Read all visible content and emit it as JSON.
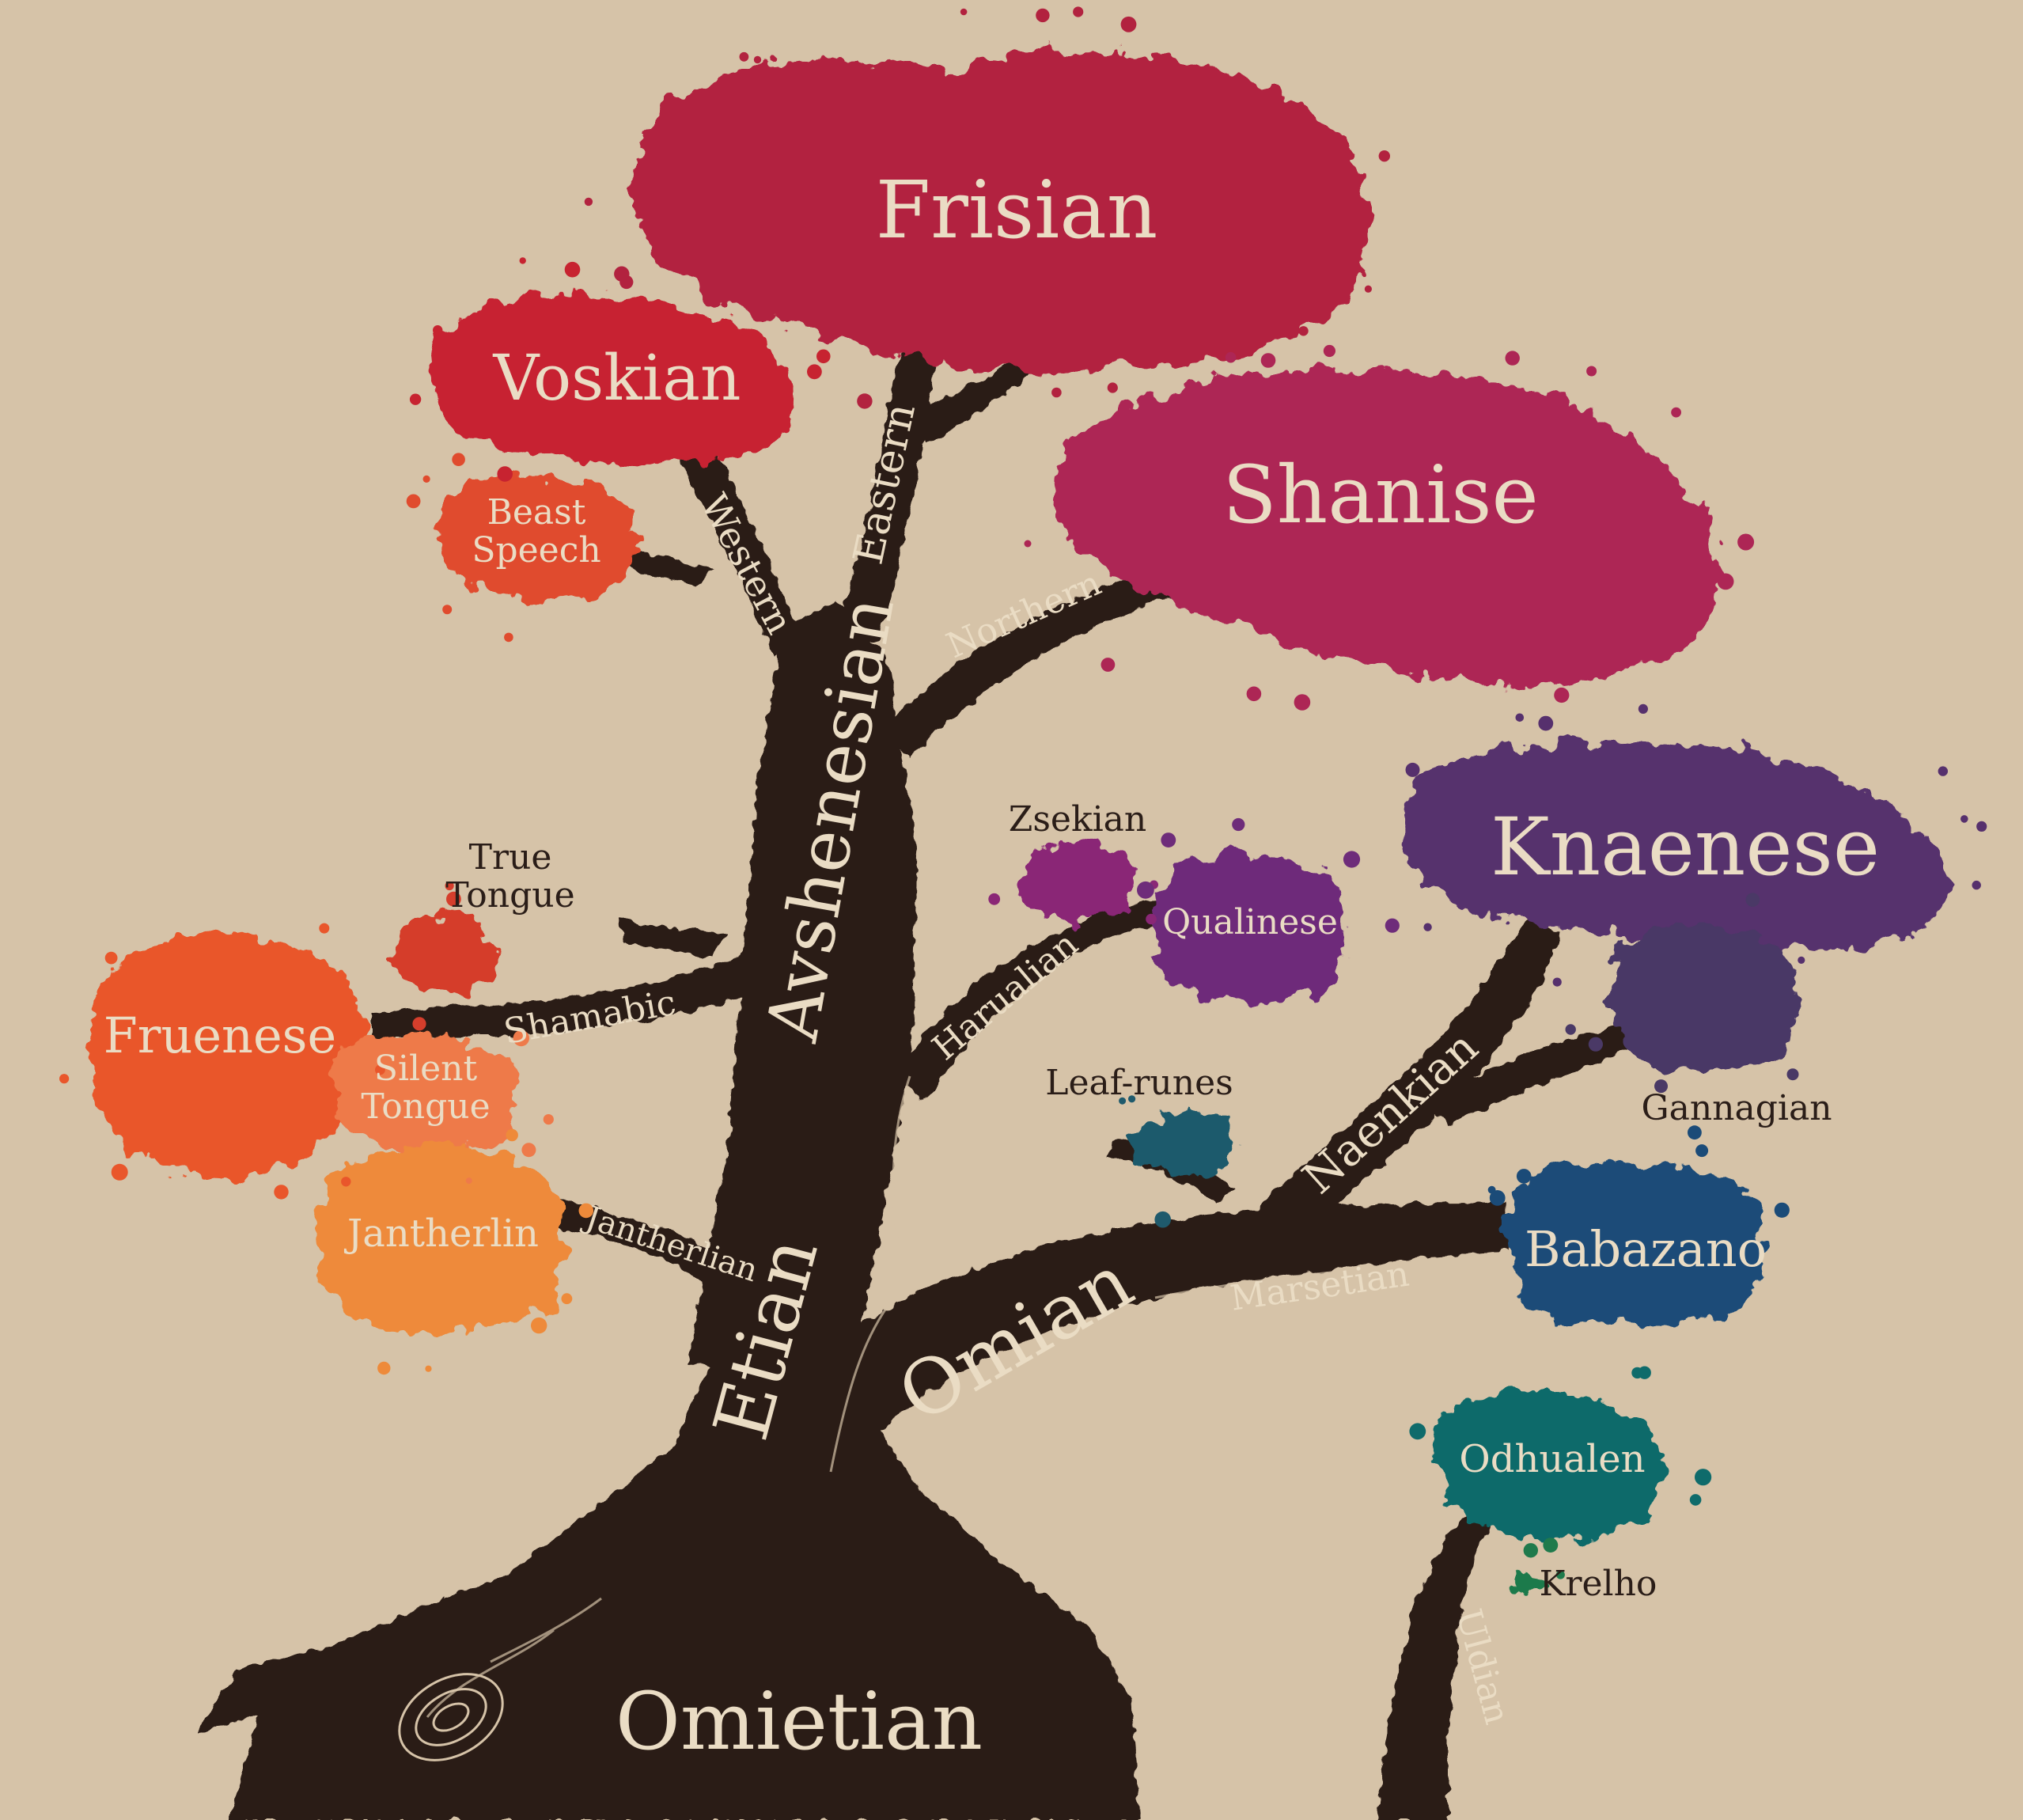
{
  "colors": {
    "background": "#d6c3a8",
    "trunk": "#2b1c17",
    "label_light": "#eadcc4",
    "label_dark": "#2a1d18",
    "frisian": "#b2223f",
    "voskian": "#c72330",
    "beast_speech": "#e04b2e",
    "shanise": "#ad2655",
    "knaenese": "#56306d",
    "gannagian": "#4a3966",
    "zsekian": "#8a2776",
    "qualinese": "#6e2c7a",
    "true_tongue": "#d53e2c",
    "fruenese": "#e9562b",
    "silent_tongue": "#ee7a4a",
    "jantherlin": "#ee8a3a",
    "leaf_runes": "#1f5a6c",
    "babazano": "#1b4b78",
    "odhualen": "#0f6b6b",
    "krelho": "#1f7a4c"
  },
  "nodes": {
    "frisian": "Frisian",
    "voskian": "Voskian",
    "beast_speech": [
      "Beast",
      "Speech"
    ],
    "shanise": "Shanise",
    "knaenese": "Knaenese",
    "gannagian": "Gannagian",
    "zsekian": "Zsekian",
    "qualinese": "Qualinese",
    "true_tongue": [
      "True",
      "Tongue"
    ],
    "fruenese": "Fruenese",
    "silent_tongue": [
      "Silent",
      "Tongue"
    ],
    "jantherlin": "Jantherlin",
    "leaf_runes": "Leaf-runes",
    "babazano": "Babazano",
    "odhualen": "Odhualen",
    "krelho": "Krelho"
  },
  "branches": {
    "omietian": "Omietian",
    "etian": "Etian",
    "omian": "Omian",
    "avshenesian": "Avshenesian",
    "eastern": "Eastern",
    "western": "Western",
    "northern": "Northern",
    "harualian": "Harualian",
    "shamabic": "Shamabic",
    "jantherlian": "Jantherlian",
    "naenkian": "Naenkian",
    "marsetian": "Marsetian",
    "uldian": "Uldian"
  }
}
